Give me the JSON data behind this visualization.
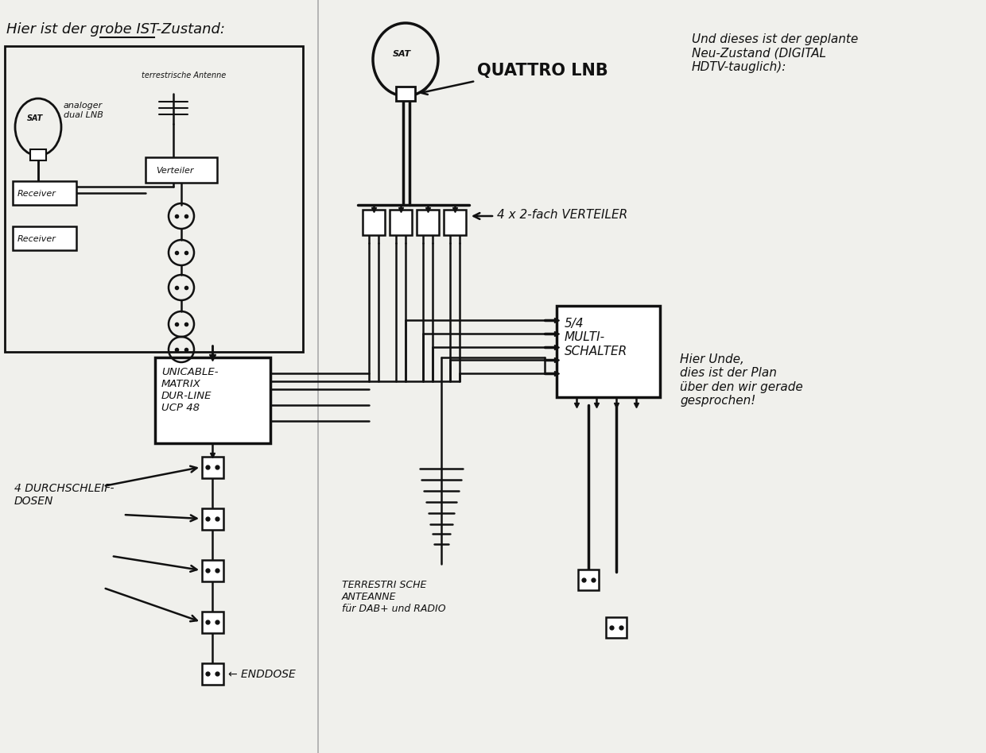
{
  "bg_color": "#f0f0ec",
  "line_color": "#111111",
  "title_left": "Hier ist der grobe IST-Zustand:",
  "title_right": "Und dieses ist der geplante\nNeu-Zustand (DIGITAL\nHDTV-tauglich):",
  "label_quattro": "QUATTRO LNB",
  "label_verteiler": "4 x 2-fach VERTEILER",
  "label_multischalter": "5/4\nMULTI-\nSCHALTER",
  "label_unicable": "UNICABLE-\nMATRIX\nDUR-LINE\nUCP 48",
  "label_dosen": "4 DURCHSCHLEIF-\nDOSEN",
  "label_enddose": "ENDDOSE",
  "label_terrestrisch": "TERRESTRI SCHE\nANTEANNE\nfür DAB+ und RADIO",
  "label_old_sat": "SAT",
  "label_old_lnb": "analoger\ndual LNB",
  "label_old_verteiler": "Verteiler",
  "label_old_receiver1": "Receiver",
  "label_old_receiver2": "Receiver",
  "label_old_antenne": "terrestrische Antenne",
  "note_right": "Hier Unde,\ndies ist der Plan\nüber den wir gerade\ngesprochen!",
  "box_color": "#ffffff",
  "box_edge": "#111111"
}
